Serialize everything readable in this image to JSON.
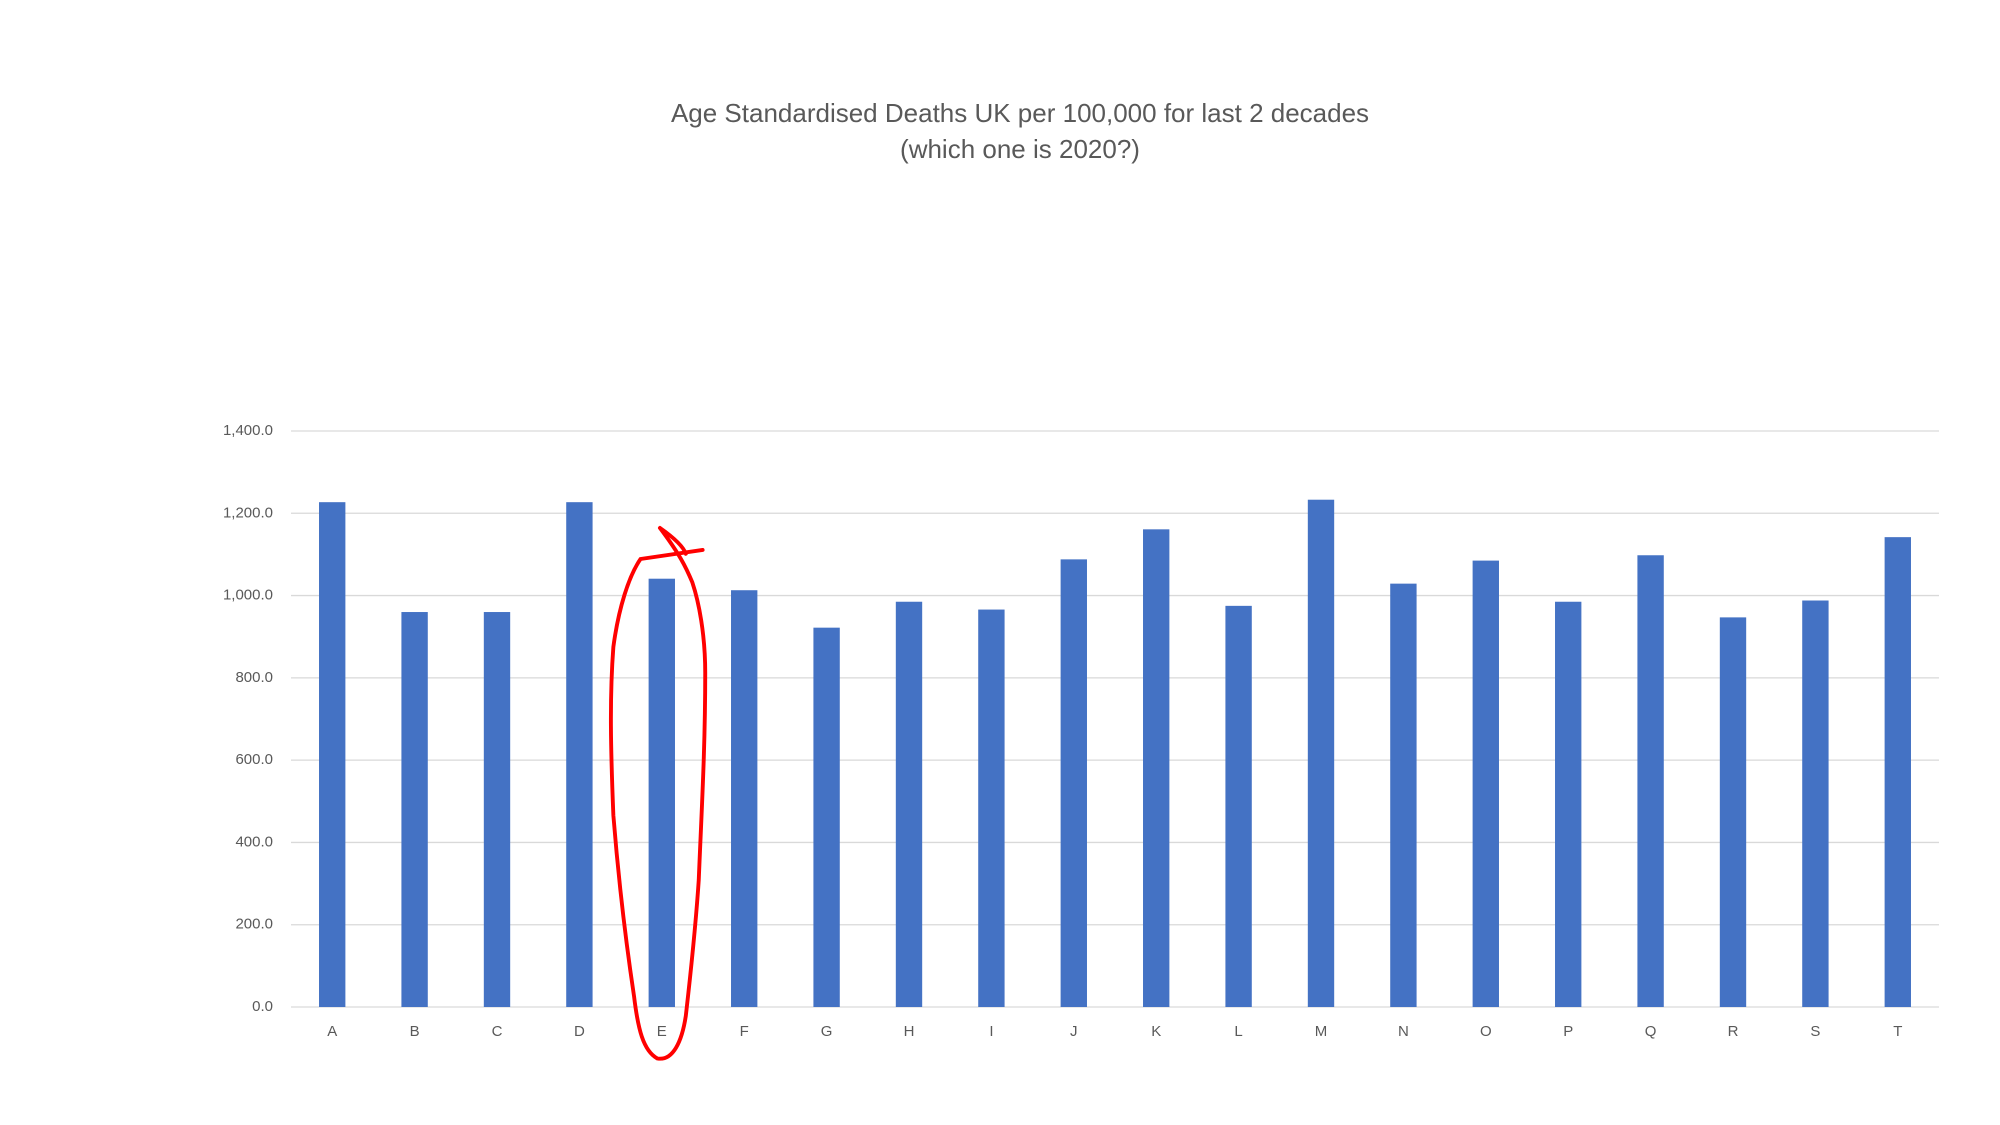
{
  "chart_data": {
    "type": "bar",
    "title": "Age Standardised Deaths UK per 100,000 for last 2 decades",
    "subtitle": "(which one is 2020?)",
    "categories": [
      "A",
      "B",
      "C",
      "D",
      "E",
      "F",
      "G",
      "H",
      "I",
      "J",
      "K",
      "L",
      "M",
      "N",
      "O",
      "P",
      "Q",
      "R",
      "S",
      "T"
    ],
    "values": [
      1227,
      960,
      960,
      1227,
      1041,
      1013,
      922,
      985,
      966,
      1088,
      1161,
      975,
      1233,
      1029,
      1085,
      985,
      1098,
      947,
      988,
      1142
    ],
    "color": "#4472c4",
    "ylim": [
      0,
      1400
    ],
    "yticks": [
      {
        "value": 0,
        "label": "0.0"
      },
      {
        "value": 200,
        "label": "200.0"
      },
      {
        "value": 400,
        "label": "400.0"
      },
      {
        "value": 600,
        "label": "600.0"
      },
      {
        "value": 800,
        "label": "800.0"
      },
      {
        "value": 1000,
        "label": "1,000.0"
      },
      {
        "value": 1200,
        "label": "1,200.0"
      },
      {
        "value": 1400,
        "label": "1,400.0"
      }
    ],
    "grid": true
  }
}
